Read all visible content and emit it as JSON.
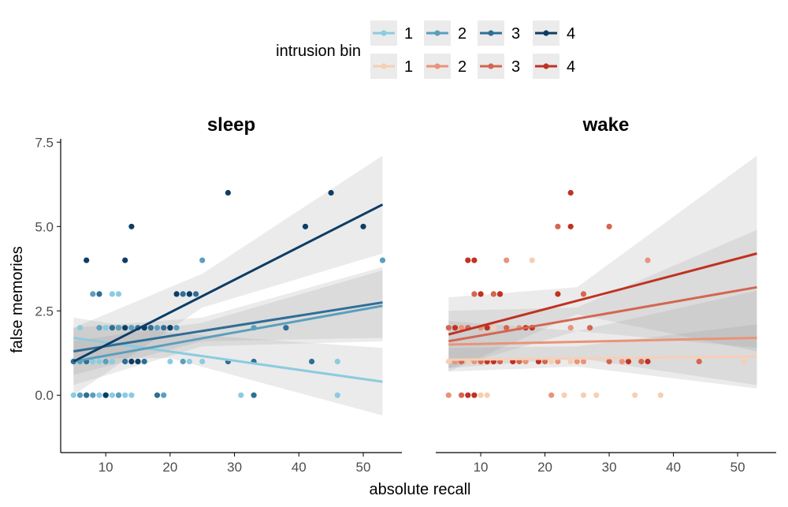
{
  "chart_data": {
    "type": "scatter",
    "xlabel": "absolute recall",
    "ylabel": "false memories",
    "xlim": [
      3,
      56
    ],
    "ylim": [
      -1.7,
      7.6
    ],
    "x_ticks": [
      10,
      20,
      30,
      40,
      50
    ],
    "y_ticks": [
      0.0,
      2.5,
      5.0,
      7.5
    ],
    "x_tick_labels": [
      "10",
      "20",
      "30",
      "40",
      "50"
    ],
    "y_tick_labels": [
      "0.0",
      "2.5",
      "5.0",
      "7.5"
    ],
    "grid": false,
    "legend": {
      "title": "intrusion bin",
      "placement": "top",
      "rows": [
        {
          "labels": [
            "1",
            "2",
            "3",
            "4"
          ]
        },
        {
          "labels": [
            "1",
            "2",
            "3",
            "4"
          ]
        }
      ]
    },
    "colors": {
      "sleep": [
        "#8ccbe0",
        "#5a9fbd",
        "#2f6e96",
        "#0c3d66"
      ],
      "wake": [
        "#f6cfb5",
        "#e9937a",
        "#d46651",
        "#c03222"
      ]
    },
    "panels": [
      {
        "title": "sleep",
        "series": [
          {
            "bin": "1",
            "points": [
              [
                5,
                1
              ],
              [
                6,
                2
              ],
              [
                8,
                1
              ],
              [
                9,
                1
              ],
              [
                10,
                1
              ],
              [
                11,
                1
              ],
              [
                12,
                3
              ],
              [
                13,
                1
              ],
              [
                14,
                2
              ],
              [
                15,
                1
              ],
              [
                20,
                1
              ],
              [
                23,
                1
              ],
              [
                25,
                1
              ],
              [
                31,
                0
              ],
              [
                46,
                1
              ],
              [
                46,
                0
              ],
              [
                5,
                0
              ],
              [
                7,
                0
              ],
              [
                9,
                0
              ],
              [
                11,
                0
              ],
              [
                12,
                0
              ],
              [
                13,
                0
              ],
              [
                14,
                0
              ],
              [
                10,
                2
              ],
              [
                11,
                3
              ]
            ],
            "fit": {
              "x": [
                5,
                53
              ],
              "y": [
                1.7,
                0.4
              ],
              "ci": [
                [
                  5,
                  1.1,
                  2.3
                ],
                [
                  20,
                  1.1,
                  1.85
                ],
                [
                  53,
                  -0.6,
                  1.4
                ]
              ]
            }
          },
          {
            "bin": "2",
            "points": [
              [
                6,
                1
              ],
              [
                8,
                3
              ],
              [
                9,
                2
              ],
              [
                10,
                1
              ],
              [
                12,
                2
              ],
              [
                14,
                1
              ],
              [
                16,
                2
              ],
              [
                18,
                2
              ],
              [
                20,
                2
              ],
              [
                22,
                1
              ],
              [
                25,
                4
              ],
              [
                33,
                2
              ],
              [
                53,
                4
              ],
              [
                8,
                0
              ],
              [
                12,
                0
              ],
              [
                6,
                0
              ],
              [
                19,
                0
              ],
              [
                14,
                2
              ],
              [
                17,
                2
              ],
              [
                21,
                2
              ]
            ],
            "fit": {
              "x": [
                5,
                53
              ],
              "y": [
                1.0,
                2.65
              ],
              "ci": [
                [
                  5,
                  0.3,
                  1.6
                ],
                [
                  25,
                  1.45,
                  2.15
                ],
                [
                  53,
                  1.6,
                  3.7
                ]
              ]
            }
          },
          {
            "bin": "3",
            "points": [
              [
                5,
                1
              ],
              [
                7,
                1
              ],
              [
                9,
                3
              ],
              [
                11,
                2
              ],
              [
                13,
                1
              ],
              [
                15,
                2
              ],
              [
                17,
                2
              ],
              [
                19,
                2
              ],
              [
                22,
                3
              ],
              [
                24,
                3
              ],
              [
                29,
                1
              ],
              [
                33,
                1
              ],
              [
                38,
                2
              ],
              [
                42,
                1
              ],
              [
                7,
                0
              ],
              [
                10,
                0
              ],
              [
                18,
                0
              ],
              [
                33,
                0
              ],
              [
                16,
                1
              ],
              [
                20,
                2
              ],
              [
                23,
                3
              ]
            ],
            "fit": {
              "x": [
                5,
                53
              ],
              "y": [
                1.3,
                2.75
              ],
              "ci": [
                [
                  5,
                  0.6,
                  2.0
                ],
                [
                  25,
                  1.6,
                  2.3
                ],
                [
                  53,
                  1.7,
                  3.8
                ]
              ]
            }
          },
          {
            "bin": "4",
            "points": [
              [
                7,
                4
              ],
              [
                10,
                0
              ],
              [
                13,
                4
              ],
              [
                14,
                5
              ],
              [
                15,
                1
              ],
              [
                16,
                2
              ],
              [
                21,
                3
              ],
              [
                23,
                3
              ],
              [
                29,
                6
              ],
              [
                41,
                5
              ],
              [
                45,
                6
              ],
              [
                50,
                5
              ],
              [
                14,
                1
              ],
              [
                20,
                2
              ],
              [
                13,
                2
              ]
            ],
            "fit": {
              "x": [
                5,
                53
              ],
              "y": [
                1.0,
                5.65
              ],
              "ci": [
                [
                  5,
                  0.0,
                  2.0
                ],
                [
                  25,
                  2.6,
                  3.6
                ],
                [
                  53,
                  4.2,
                  7.1
                ]
              ]
            }
          }
        ]
      },
      {
        "title": "wake",
        "series": [
          {
            "bin": "1",
            "points": [
              [
                5,
                1
              ],
              [
                8,
                1
              ],
              [
                10,
                0
              ],
              [
                11,
                0
              ],
              [
                13,
                1
              ],
              [
                18,
                4
              ],
              [
                21,
                1
              ],
              [
                23,
                0
              ],
              [
                24,
                1
              ],
              [
                26,
                0
              ],
              [
                28,
                0
              ],
              [
                34,
                0
              ],
              [
                38,
                0
              ],
              [
                51,
                1
              ],
              [
                16,
                1
              ],
              [
                22,
                1
              ],
              [
                12,
                2
              ]
            ],
            "fit": {
              "x": [
                5,
                53
              ],
              "y": [
                1.05,
                1.15
              ],
              "ci": [
                [
                  5,
                  0.7,
                  1.4
                ],
                [
                  25,
                  0.85,
                  1.45
                ],
                [
                  53,
                  0.2,
                  2.1
                ]
              ]
            }
          },
          {
            "bin": "2",
            "points": [
              [
                6,
                1
              ],
              [
                7,
                2
              ],
              [
                9,
                1
              ],
              [
                10,
                2
              ],
              [
                12,
                3
              ],
              [
                14,
                4
              ],
              [
                16,
                2
              ],
              [
                17,
                1
              ],
              [
                19,
                1
              ],
              [
                22,
                1
              ],
              [
                24,
                2
              ],
              [
                26,
                1
              ],
              [
                30,
                1
              ],
              [
                32,
                1
              ],
              [
                36,
                4
              ],
              [
                5,
                0
              ],
              [
                21,
                0
              ],
              [
                25,
                1
              ],
              [
                15,
                1
              ]
            ],
            "fit": {
              "x": [
                5,
                53
              ],
              "y": [
                1.5,
                1.7
              ],
              "ci": [
                [
                  5,
                  0.8,
                  2.2
                ],
                [
                  25,
                  1.1,
                  1.9
                ],
                [
                  53,
                  0.3,
                  3.1
                ]
              ]
            }
          },
          {
            "bin": "3",
            "points": [
              [
                5,
                2
              ],
              [
                7,
                1
              ],
              [
                9,
                3
              ],
              [
                10,
                1
              ],
              [
                12,
                3
              ],
              [
                14,
                2
              ],
              [
                16,
                1
              ],
              [
                18,
                2
              ],
              [
                22,
                5
              ],
              [
                26,
                3
              ],
              [
                30,
                5
              ],
              [
                35,
                1
              ],
              [
                44,
                1
              ],
              [
                7,
                0
              ],
              [
                13,
                1
              ],
              [
                20,
                1
              ],
              [
                27,
                2
              ],
              [
                30,
                1
              ],
              [
                8,
                2
              ]
            ],
            "fit": {
              "x": [
                5,
                53
              ],
              "y": [
                1.6,
                3.2
              ],
              "ci": [
                [
                  5,
                  0.8,
                  2.5
                ],
                [
                  25,
                  1.9,
                  2.6
                ],
                [
                  53,
                  1.4,
                  4.9
                ]
              ]
            }
          },
          {
            "bin": "4",
            "points": [
              [
                6,
                2
              ],
              [
                8,
                4
              ],
              [
                9,
                4
              ],
              [
                10,
                3
              ],
              [
                11,
                2
              ],
              [
                13,
                3
              ],
              [
                15,
                1
              ],
              [
                17,
                2
              ],
              [
                19,
                1
              ],
              [
                22,
                3
              ],
              [
                24,
                6
              ],
              [
                24,
                5
              ],
              [
                9,
                0
              ],
              [
                13,
                3
              ],
              [
                8,
                0
              ],
              [
                11,
                1
              ],
              [
                18,
                2
              ],
              [
                12,
                1
              ],
              [
                33,
                1
              ],
              [
                36,
                1
              ]
            ],
            "fit": {
              "x": [
                5,
                53
              ],
              "y": [
                1.8,
                4.2
              ],
              "ci": [
                [
                  5,
                  0.7,
                  2.9
                ],
                [
                  25,
                  2.4,
                  3.2
                ],
                [
                  53,
                  1.3,
                  7.1
                ]
              ]
            }
          }
        ]
      }
    ]
  }
}
